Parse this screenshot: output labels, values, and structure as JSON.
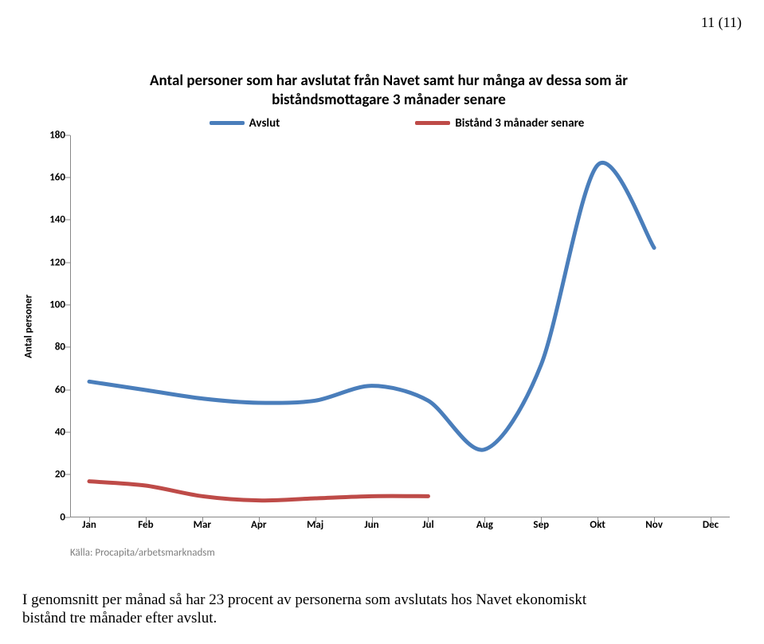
{
  "page_number": "11 (11)",
  "chart": {
    "type": "line",
    "title_line1": "Antal personer som har avslutat från Navet samt hur många av dessa som är",
    "title_line2": "biståndsmottagare 3 månader senare",
    "title_fontsize": 19,
    "y_axis_label": "Antal personer",
    "axis_label_fontsize": 13,
    "background_color": "#ffffff",
    "axis_line_color": "#888888",
    "tick_font_weight": "700",
    "ylim_min": 0,
    "ylim_max": 180,
    "ytick_step": 20,
    "yticks": [
      0,
      20,
      40,
      60,
      80,
      100,
      120,
      140,
      160,
      180
    ],
    "categories": [
      "Jan",
      "Feb",
      "Mar",
      "Apr",
      "Maj",
      "Jun",
      "Jul",
      "Aug",
      "Sep",
      "Okt",
      "Nov",
      "Dec"
    ],
    "line_width": 5,
    "series": [
      {
        "name": "Avslut",
        "color": "#4a7ebb",
        "values": [
          64,
          60,
          56,
          54,
          55,
          62,
          55,
          32,
          72,
          166,
          127,
          null
        ]
      },
      {
        "name": "Bistånd 3 månader senare",
        "color": "#be4b48",
        "values": [
          17,
          15,
          10,
          8,
          9,
          10,
          10,
          null,
          null,
          null,
          null,
          null
        ]
      }
    ],
    "legend": {
      "items": [
        {
          "label": "Avslut",
          "color": "#4a7ebb"
        },
        {
          "label": "Bistånd 3 månader senare",
          "color": "#be4b48"
        }
      ],
      "fontsize": 15,
      "font_weight": "700"
    },
    "source_text": "Källa: Procapita/arbetsmarknadsm",
    "source_color": "#7f7f7f"
  },
  "caption_line1": "I genomsnitt per månad så har 23 procent av personerna som avslutats hos Navet ekonomiskt",
  "caption_line2": "bistånd tre månader efter avslut."
}
